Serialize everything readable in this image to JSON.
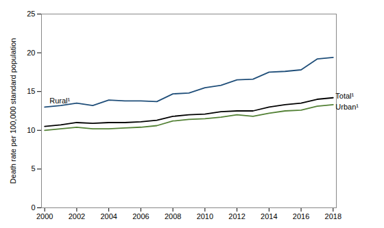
{
  "chart_data": {
    "type": "line",
    "ylabel": "Death rate per 100,000 standard population",
    "x": [
      2000,
      2001,
      2002,
      2003,
      2004,
      2005,
      2006,
      2007,
      2008,
      2009,
      2010,
      2011,
      2012,
      2013,
      2014,
      2015,
      2016,
      2017,
      2018
    ],
    "series": [
      {
        "name": "Rural¹",
        "color": "#1f4e79",
        "values": [
          13.0,
          13.2,
          13.5,
          13.2,
          13.9,
          13.8,
          13.8,
          13.7,
          14.7,
          14.8,
          15.5,
          15.8,
          16.5,
          16.6,
          17.5,
          17.6,
          17.8,
          19.2,
          19.4
        ]
      },
      {
        "name": "Total¹",
        "color": "#000000",
        "values": [
          10.5,
          10.7,
          11.0,
          10.9,
          11.0,
          11.0,
          11.1,
          11.3,
          11.8,
          12.0,
          12.1,
          12.4,
          12.5,
          12.5,
          13.0,
          13.3,
          13.5,
          14.0,
          14.2
        ]
      },
      {
        "name": "Urban¹",
        "color": "#538135",
        "values": [
          10.0,
          10.2,
          10.4,
          10.2,
          10.2,
          10.3,
          10.4,
          10.6,
          11.2,
          11.4,
          11.5,
          11.7,
          12.0,
          11.8,
          12.2,
          12.5,
          12.6,
          13.1,
          13.3
        ]
      }
    ],
    "annotations": [
      {
        "text": "Rural¹",
        "x": 2000.3,
        "y": 13.8
      },
      {
        "text": "Total¹",
        "x": 2018.15,
        "y": 14.4
      },
      {
        "text": "Urban¹",
        "x": 2018.15,
        "y": 13.0
      }
    ],
    "xlim": [
      1999.8,
      2018.2
    ],
    "xticks": [
      2000,
      2002,
      2004,
      2006,
      2008,
      2010,
      2012,
      2014,
      2016,
      2018
    ],
    "ylim": [
      0,
      25
    ],
    "yticks": [
      0,
      5,
      10,
      15,
      20,
      25
    ],
    "grid": false,
    "legend": false
  }
}
